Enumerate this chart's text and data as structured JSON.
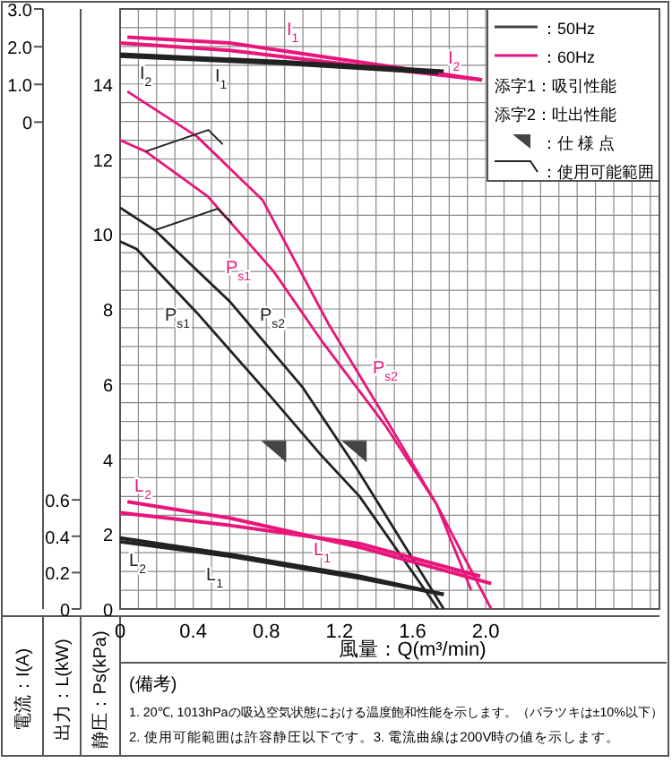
{
  "chart_data": {
    "type": "line",
    "xlabel": "風量：Q(m³/min)",
    "ylabel": "静圧：Ps(kPa)",
    "y2label": "出力：L(kW)",
    "y3label": "電流：I(A)",
    "xlim": [
      0,
      2.95
    ],
    "xticks": [
      0,
      0.4,
      0.8,
      1.2,
      1.6,
      {
        "value": 2,
        "label": "2.0"
      }
    ],
    "ylim": [
      0,
      16
    ],
    "yticks": [
      0,
      2,
      4,
      6,
      8,
      10,
      12,
      14
    ],
    "y2lim": [
      0,
      3.3
    ],
    "y2ticks": [
      0,
      0.2,
      0.4,
      0.6
    ],
    "y3lim": [
      -16.8,
      3.0
    ],
    "y3ticks": [
      0,
      {
        "value": 1,
        "label": "1.0"
      },
      {
        "value": 2,
        "label": "2.0"
      },
      {
        "value": 3,
        "label": "3.0"
      }
    ],
    "grid": true,
    "legend": "top right",
    "line_style": "solid",
    "series": [
      {
        "name": "P$_{s2}$",
        "color": "#e8157a",
        "x": [
          0.04,
          0.42,
          0.78,
          1.14,
          1.45,
          1.73,
          2.03
        ],
        "values": [
          13.8,
          12.6,
          10.9,
          7.6,
          5.1,
          2.8,
          0
        ]
      },
      {
        "name": "P$_{s1}$",
        "color": "#e8157a",
        "x": [
          0,
          0.14,
          0.48,
          0.84,
          1.11,
          1.45,
          1.73,
          1.92
        ],
        "values": [
          12.5,
          12.2,
          11.0,
          9.0,
          7.1,
          4.9,
          2.8,
          0.5
        ]
      },
      {
        "name": "P$_{s2}$",
        "color": "#222222",
        "x": [
          0,
          0.19,
          0.6,
          1.0,
          1.3,
          1.77
        ],
        "values": [
          10.7,
          10.1,
          8.2,
          5.9,
          3.7,
          0
        ]
      },
      {
        "name": "P$_{s1}$",
        "color": "#222222",
        "x": [
          0,
          0.09,
          0.42,
          0.8,
          1.1,
          1.31,
          1.74
        ],
        "values": [
          9.8,
          9.6,
          7.9,
          5.8,
          4.1,
          3.0,
          0
        ]
      },
      {
        "name": "I$_{1}$",
        "color": "#e8157a",
        "axis": "y3",
        "x": [
          0.04,
          0.6,
          1.3,
          1.98
        ],
        "values": [
          2.25,
          2.1,
          1.6,
          1.12
        ]
      },
      {
        "name": "I$_{2}$",
        "color": "#e8157a",
        "axis": "y3",
        "x": [
          0,
          0.6,
          1.3,
          1.98
        ],
        "values": [
          2.1,
          1.9,
          1.5,
          1.12
        ]
      },
      {
        "name": "I$_{1}$",
        "color": "#222222",
        "axis": "y3",
        "x": [
          0,
          0.9,
          1.77
        ],
        "values": [
          1.8,
          1.6,
          1.35
        ]
      },
      {
        "name": "I$_{2}$",
        "color": "#222222",
        "axis": "y3",
        "x": [
          0,
          0.9,
          1.74
        ],
        "values": [
          1.75,
          1.55,
          1.3
        ]
      },
      {
        "name": "L$_{2}$",
        "color": "#e8157a",
        "axis": "y2",
        "x": [
          0.04,
          0.6,
          1.31,
          2.03
        ],
        "values": [
          0.59,
          0.5,
          0.34,
          0.14
        ]
      },
      {
        "name": "L$_{1}$",
        "color": "#e8157a",
        "axis": "y2",
        "x": [
          0,
          0.6,
          1.31,
          1.97
        ],
        "values": [
          0.53,
          0.46,
          0.36,
          0.18
        ]
      },
      {
        "name": "L$_{2}$",
        "color": "#222222",
        "axis": "y2",
        "x": [
          0,
          0.6,
          1.31,
          1.77
        ],
        "values": [
          0.39,
          0.3,
          0.18,
          0.08
        ]
      },
      {
        "name": "L$_{1}$",
        "color": "#222222",
        "axis": "y2",
        "x": [
          0,
          0.6,
          1.31,
          1.77
        ],
        "values": [
          0.37,
          0.29,
          0.17,
          0.08
        ]
      },
      {
        "type": "scatter",
        "marker": "triangle",
        "color": "#444444",
        "x": [
          0.84,
          1.28
        ],
        "values": [
          4.2,
          4.2
        ]
      }
    ],
    "annotations": [
      "：50Hz",
      "：60Hz",
      "添字1：吸引性能",
      "添字2：吐出性能",
      "：仕 様 点",
      "：使用可能範囲",
      "(備考)",
      "1. 20℃, 1013hPaの吸込空気状態における温度飽和性能を示します。（バラツキは±10%以下）",
      "2. 使用可能範囲は許容静圧以下です。3. 電流曲線は200V時の値を示します。"
    ]
  }
}
